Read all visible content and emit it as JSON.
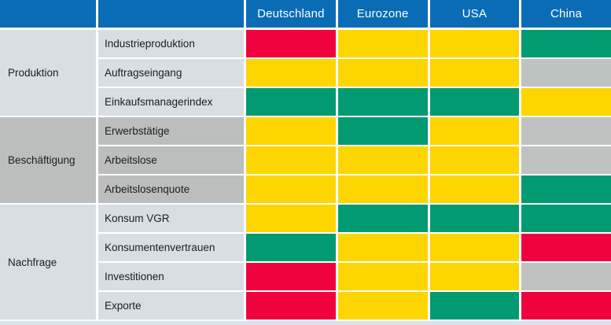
{
  "header": {
    "columns": [
      "Deutschland",
      "Eurozone",
      "USA",
      "China"
    ]
  },
  "colors": {
    "header_bg": "#0b6cb6",
    "header_text": "#ffffff",
    "row_light_bg": "#d7dfe5",
    "row_gray_bg": "#bcbebe",
    "bottom_strip": "#dae3ea",
    "status": {
      "red": "#f0023f",
      "yellow": "#fdd500",
      "green": "#029a71",
      "gray": "#c0c1c1"
    }
  },
  "groups": [
    {
      "label": "Produktion",
      "rows": [
        {
          "label": "Industrieproduktion",
          "cells": [
            "red",
            "yellow",
            "yellow",
            "green"
          ]
        },
        {
          "label": "Auftragseingang",
          "cells": [
            "yellow",
            "yellow",
            "yellow",
            "gray"
          ]
        },
        {
          "label": "Einkaufsmanagerindex",
          "cells": [
            "green",
            "green",
            "green",
            "yellow"
          ]
        }
      ]
    },
    {
      "label": "Beschäftigung",
      "rows": [
        {
          "label": "Erwerbstätige",
          "cells": [
            "yellow",
            "green",
            "yellow",
            "gray"
          ]
        },
        {
          "label": "Arbeitslose",
          "cells": [
            "yellow",
            "yellow",
            "yellow",
            "gray"
          ]
        },
        {
          "label": "Arbeitslosenquote",
          "cells": [
            "yellow",
            "yellow",
            "yellow",
            "green"
          ]
        }
      ]
    },
    {
      "label": "Nachfrage",
      "rows": [
        {
          "label": "Konsum VGR",
          "cells": [
            "yellow",
            "green",
            "green",
            "green"
          ]
        },
        {
          "label": "Konsumentenvertrauen",
          "cells": [
            "green",
            "yellow",
            "yellow",
            "red"
          ]
        },
        {
          "label": "Investitionen",
          "cells": [
            "red",
            "yellow",
            "yellow",
            "gray"
          ]
        },
        {
          "label": "Exporte",
          "cells": [
            "red",
            "yellow",
            "green",
            "red"
          ]
        }
      ]
    }
  ],
  "chart_data": {
    "type": "heatmap",
    "title": "",
    "columns": [
      "Deutschland",
      "Eurozone",
      "USA",
      "China"
    ],
    "row_groups": [
      "Produktion",
      "Produktion",
      "Produktion",
      "Beschäftigung",
      "Beschäftigung",
      "Beschäftigung",
      "Nachfrage",
      "Nachfrage",
      "Nachfrage",
      "Nachfrage"
    ],
    "rows": [
      "Industrieproduktion",
      "Auftragseingang",
      "Einkaufsmanagerindex",
      "Erwerbstätige",
      "Arbeitslose",
      "Arbeitslosenquote",
      "Konsum VGR",
      "Konsumentenvertrauen",
      "Investitionen",
      "Exporte"
    ],
    "values": [
      [
        "red",
        "yellow",
        "yellow",
        "green"
      ],
      [
        "yellow",
        "yellow",
        "yellow",
        "gray"
      ],
      [
        "green",
        "green",
        "green",
        "yellow"
      ],
      [
        "yellow",
        "green",
        "yellow",
        "gray"
      ],
      [
        "yellow",
        "yellow",
        "yellow",
        "gray"
      ],
      [
        "yellow",
        "yellow",
        "yellow",
        "green"
      ],
      [
        "yellow",
        "green",
        "green",
        "green"
      ],
      [
        "green",
        "yellow",
        "yellow",
        "red"
      ],
      [
        "red",
        "yellow",
        "yellow",
        "gray"
      ],
      [
        "red",
        "yellow",
        "green",
        "red"
      ]
    ],
    "palette": {
      "red": "#f0023f",
      "yellow": "#fdd500",
      "green": "#029a71",
      "gray": "#c0c1c1"
    },
    "legend_position": "none",
    "grid": false
  }
}
